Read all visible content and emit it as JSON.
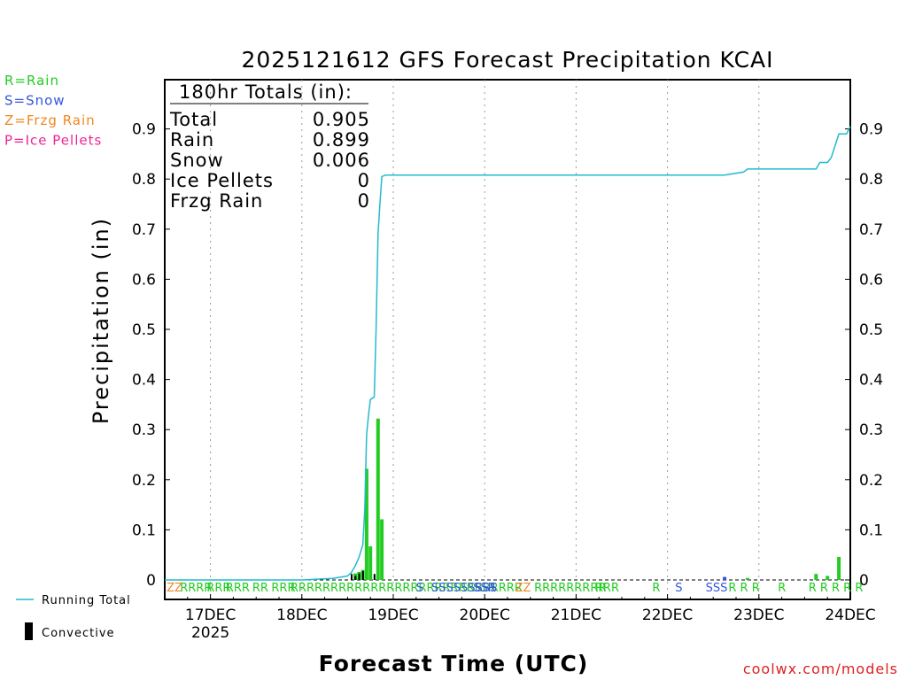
{
  "chart_data": {
    "type": "bar",
    "title": "2025121612 GFS Forecast Precipitation KCAI",
    "xlabel": "Forecast Time (UTC)",
    "ylabel": "Precipitation (in)",
    "ylim": [
      0,
      1.0
    ],
    "y_ticks": [
      {
        "value": 0,
        "label": "0"
      },
      {
        "value": 0.1,
        "label": "0.1"
      },
      {
        "value": 0.2,
        "label": "0.2"
      },
      {
        "value": 0.3,
        "label": "0.3"
      },
      {
        "value": 0.4,
        "label": "0.4"
      },
      {
        "value": 0.5,
        "label": "0.5"
      },
      {
        "value": 0.6,
        "label": "0.6"
      },
      {
        "value": 0.7,
        "label": "0.7"
      },
      {
        "value": 0.8,
        "label": "0.8"
      },
      {
        "value": 0.9,
        "label": "0.9"
      }
    ],
    "x_range_hours": [
      0,
      180
    ],
    "x_ticks": [
      {
        "hour": 12,
        "label": "17DEC",
        "sublabel": "2025"
      },
      {
        "hour": 36,
        "label": "18DEC"
      },
      {
        "hour": 60,
        "label": "19DEC"
      },
      {
        "hour": 84,
        "label": "20DEC"
      },
      {
        "hour": 108,
        "label": "21DEC"
      },
      {
        "hour": 132,
        "label": "22DEC"
      },
      {
        "hour": 156,
        "label": "23DEC"
      },
      {
        "hour": 180,
        "label": "24DEC"
      }
    ],
    "grid": "dotted vertical",
    "totals_box": {
      "heading": "180hr Totals (in):",
      "rows": [
        {
          "label": "Total",
          "value": "0.905"
        },
        {
          "label": "Rain",
          "value": "0.899"
        },
        {
          "label": "Snow",
          "value": "0.006"
        },
        {
          "label": "Ice Pellets",
          "value": "0"
        },
        {
          "label": "Frzg Rain",
          "value": "0"
        }
      ]
    },
    "type_legend": [
      {
        "text": "R=Rain",
        "color": "#22cc22"
      },
      {
        "text": "S=Snow",
        "color": "#3355dd"
      },
      {
        "text": "Z=Frzg Rain",
        "color": "#ee8822"
      },
      {
        "text": "P=Ice Pellets",
        "color": "#ee2299"
      }
    ],
    "series_legend": [
      {
        "name": "Running Total",
        "color": "#22bbcc",
        "kind": "line"
      },
      {
        "name": "Convective",
        "color": "#000000",
        "kind": "bar"
      }
    ],
    "precip_bars": [
      {
        "hour": 50,
        "value": 0.013,
        "color": "#22cc22"
      },
      {
        "hour": 51,
        "value": 0.016,
        "color": "#22cc22"
      },
      {
        "hour": 52,
        "value": 0.02,
        "color": "#22cc22"
      },
      {
        "hour": 53,
        "value": 0.222,
        "color": "#22cc22"
      },
      {
        "hour": 54,
        "value": 0.067,
        "color": "#22cc22"
      },
      {
        "hour": 56,
        "value": 0.322,
        "color": "#22cc22"
      },
      {
        "hour": 57,
        "value": 0.121,
        "color": "#22cc22"
      },
      {
        "hour": 147,
        "value": 0.006,
        "color": "#3355dd"
      },
      {
        "hour": 153,
        "value": 0.004,
        "color": "#22cc22"
      },
      {
        "hour": 171,
        "value": 0.012,
        "color": "#22cc22"
      },
      {
        "hour": 174,
        "value": 0.008,
        "color": "#22cc22"
      },
      {
        "hour": 177,
        "value": 0.046,
        "color": "#22cc22"
      }
    ],
    "convective_bars": [
      {
        "hour": 50,
        "value": 0.012
      },
      {
        "hour": 51,
        "value": 0.008
      },
      {
        "hour": 52,
        "value": 0.013
      },
      {
        "hour": 53,
        "value": 0.018
      },
      {
        "hour": 56,
        "value": 0.012
      }
    ],
    "running_total": {
      "hours": [
        0,
        36,
        44,
        48,
        49,
        50,
        51,
        52,
        52.5,
        53,
        53.5,
        54,
        55,
        55.5,
        56,
        56.5,
        57,
        58,
        60,
        147,
        152,
        153,
        171,
        172,
        174,
        175,
        177,
        179,
        180
      ],
      "values": [
        0,
        0,
        0.003,
        0.008,
        0.015,
        0.028,
        0.045,
        0.07,
        0.14,
        0.29,
        0.33,
        0.36,
        0.365,
        0.5,
        0.69,
        0.75,
        0.805,
        0.808,
        0.808,
        0.808,
        0.814,
        0.82,
        0.82,
        0.833,
        0.833,
        0.843,
        0.89,
        0.89,
        0.905
      ]
    },
    "ptype_row": [
      {
        "hour": 0.5,
        "text": "ZZ",
        "color": "#ee8822"
      },
      {
        "hour": 4,
        "text": "RRRR",
        "color": "#22cc22"
      },
      {
        "hour": 11,
        "text": "RRR",
        "color": "#22cc22"
      },
      {
        "hour": 16,
        "text": "RRR",
        "color": "#22cc22"
      },
      {
        "hour": 23,
        "text": "RR",
        "color": "#22cc22"
      },
      {
        "hour": 28,
        "text": "RRR",
        "color": "#22cc22"
      },
      {
        "hour": 33,
        "text": "RRRRRRRRRRRRRRRRRRRRRRRRRRRRR",
        "color": "#22cc22"
      },
      {
        "hour": 66,
        "text": "S",
        "color": "#3355dd"
      },
      {
        "hour": 70,
        "text": "SSSSSSSSS",
        "color": "#3355dd"
      },
      {
        "hour": 81,
        "text": "SSR",
        "color": "#3355dd"
      },
      {
        "hour": 92,
        "text": "ZZ",
        "color": "#ee8822"
      },
      {
        "hour": 97,
        "text": "RRRRRRRRR",
        "color": "#22cc22"
      },
      {
        "hour": 113,
        "text": "RRR",
        "color": "#22cc22"
      },
      {
        "hour": 128,
        "text": "R",
        "color": "#22cc22"
      },
      {
        "hour": 134,
        "text": "S",
        "color": "#3355dd"
      },
      {
        "hour": 142,
        "text": "SSS",
        "color": "#3355dd"
      },
      {
        "hour": 148,
        "text": "R R R",
        "color": "#22cc22"
      },
      {
        "hour": 161,
        "text": "R",
        "color": "#22cc22"
      },
      {
        "hour": 169,
        "text": "R R R R R",
        "color": "#22cc22"
      }
    ]
  },
  "credit": "coolwx.com/models"
}
